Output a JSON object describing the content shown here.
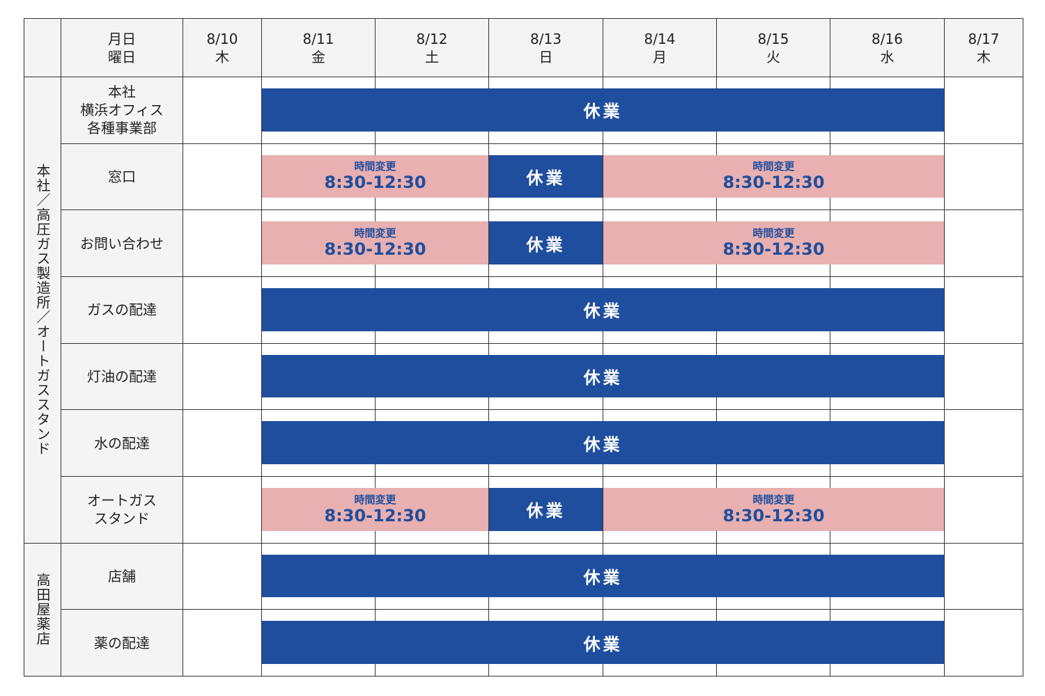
{
  "header": {
    "date_label": "月日",
    "weekday_label": "曜日"
  },
  "columns": [
    {
      "date": "8/10",
      "weekday": "木"
    },
    {
      "date": "8/11",
      "weekday": "金"
    },
    {
      "date": "8/12",
      "weekday": "土"
    },
    {
      "date": "8/13",
      "weekday": "日"
    },
    {
      "date": "8/14",
      "weekday": "月"
    },
    {
      "date": "8/15",
      "weekday": "火"
    },
    {
      "date": "8/16",
      "weekday": "水"
    },
    {
      "date": "8/17",
      "weekday": "木"
    }
  ],
  "groups": [
    {
      "label": "本社／高圧ガス製造所／オートガススタンド",
      "rows": [
        {
          "label": [
            "本社",
            "横浜オフィス",
            "各種事業部"
          ],
          "bars": [
            {
              "start": "8/11",
              "end": "8/16",
              "label": "休業"
            }
          ]
        },
        {
          "label": [
            "窓口"
          ],
          "bars": [
            {
              "start": "8/11",
              "end": "8/12",
              "title": "時間変更",
              "hours": "8:30-12:30"
            },
            {
              "start": "8/13",
              "end": "8/13",
              "label": "休業"
            },
            {
              "start": "8/14",
              "end": "8/16",
              "title": "時間変更",
              "hours": "8:30-12:30"
            }
          ]
        },
        {
          "label": [
            "お問い合わせ"
          ],
          "bars": [
            {
              "start": "8/11",
              "end": "8/12",
              "title": "時間変更",
              "hours": "8:30-12:30"
            },
            {
              "start": "8/13",
              "end": "8/13",
              "label": "休業"
            },
            {
              "start": "8/14",
              "end": "8/16",
              "title": "時間変更",
              "hours": "8:30-12:30"
            }
          ]
        },
        {
          "label": [
            "ガスの配達"
          ],
          "bars": [
            {
              "start": "8/11",
              "end": "8/16",
              "label": "休業"
            }
          ]
        },
        {
          "label": [
            "灯油の配達"
          ],
          "bars": [
            {
              "start": "8/11",
              "end": "8/16",
              "label": "休業"
            }
          ]
        },
        {
          "label": [
            "水の配達"
          ],
          "bars": [
            {
              "start": "8/11",
              "end": "8/16",
              "label": "休業"
            }
          ]
        },
        {
          "label": [
            "オートガス",
            "スタンド"
          ],
          "bars": [
            {
              "start": "8/11",
              "end": "8/12",
              "title": "時間変更",
              "hours": "8:30-12:30"
            },
            {
              "start": "8/13",
              "end": "8/13",
              "label": "休業"
            },
            {
              "start": "8/14",
              "end": "8/16",
              "title": "時間変更",
              "hours": "8:30-12:30"
            }
          ]
        }
      ]
    },
    {
      "label": "高田屋薬店",
      "rows": [
        {
          "label": [
            "店舗"
          ],
          "bars": [
            {
              "start": "8/11",
              "end": "8/16",
              "label": "休業"
            }
          ]
        },
        {
          "label": [
            "薬の配達"
          ],
          "bars": [
            {
              "start": "8/11",
              "end": "8/16",
              "label": "休業"
            }
          ]
        }
      ]
    }
  ]
}
